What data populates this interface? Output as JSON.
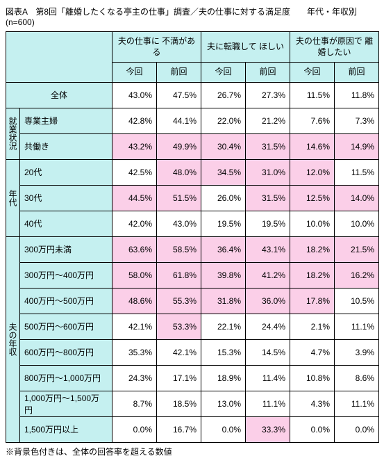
{
  "title": "図表A　第8回「離婚したくなる亭主の仕事」調査／夫の仕事に対する満足度　　年代・年収別　　(n=600)",
  "footnote": "※背景色付きは、全体の回答率を超える数値",
  "colors": {
    "header_bg": "#c5f0f0",
    "highlight_bg": "#fbcfe8",
    "border": "#000000",
    "bg": "#ffffff"
  },
  "columns": {
    "g1": "夫の仕事に\n不満がある",
    "g2": "夫に転職して\nほしい",
    "g3": "夫の仕事が原因で\n離婚したい",
    "sub_now": "今回",
    "sub_prev": "前回"
  },
  "categories": {
    "total": "全体",
    "emp": "就業状況",
    "age": "年代",
    "income": "夫の年収"
  },
  "rows": {
    "total": {
      "label": "全体",
      "v": [
        "43.0%",
        "47.5%",
        "26.7%",
        "27.3%",
        "11.5%",
        "11.8%"
      ],
      "hl": [
        0,
        0,
        0,
        0,
        0,
        0
      ]
    },
    "emp1": {
      "label": "専業主婦",
      "v": [
        "42.8%",
        "44.1%",
        "22.0%",
        "21.2%",
        "7.6%",
        "7.3%"
      ],
      "hl": [
        0,
        0,
        0,
        0,
        0,
        0
      ]
    },
    "emp2": {
      "label": "共働き",
      "v": [
        "43.2%",
        "49.9%",
        "30.4%",
        "31.5%",
        "14.6%",
        "14.9%"
      ],
      "hl": [
        1,
        1,
        1,
        1,
        1,
        1
      ]
    },
    "age1": {
      "label": "20代",
      "v": [
        "42.5%",
        "48.0%",
        "34.5%",
        "31.0%",
        "12.0%",
        "11.5%"
      ],
      "hl": [
        0,
        1,
        1,
        1,
        1,
        0
      ]
    },
    "age2": {
      "label": "30代",
      "v": [
        "44.5%",
        "51.5%",
        "26.0%",
        "31.5%",
        "12.5%",
        "14.0%"
      ],
      "hl": [
        1,
        1,
        0,
        1,
        1,
        1
      ]
    },
    "age3": {
      "label": "40代",
      "v": [
        "42.0%",
        "43.0%",
        "19.5%",
        "19.5%",
        "10.0%",
        "10.0%"
      ],
      "hl": [
        0,
        0,
        0,
        0,
        0,
        0
      ]
    },
    "inc1": {
      "label": "300万円未満",
      "v": [
        "63.6%",
        "58.5%",
        "36.4%",
        "43.1%",
        "18.2%",
        "21.5%"
      ],
      "hl": [
        1,
        1,
        1,
        1,
        1,
        1
      ]
    },
    "inc2": {
      "label": "300万円～400万円",
      "v": [
        "58.0%",
        "61.8%",
        "39.8%",
        "41.2%",
        "18.2%",
        "16.2%"
      ],
      "hl": [
        1,
        1,
        1,
        1,
        1,
        1
      ]
    },
    "inc3": {
      "label": "400万円～500万円",
      "v": [
        "48.6%",
        "55.3%",
        "31.8%",
        "36.0%",
        "17.8%",
        "10.5%"
      ],
      "hl": [
        1,
        1,
        1,
        1,
        1,
        0
      ]
    },
    "inc4": {
      "label": "500万円～600万円",
      "v": [
        "42.1%",
        "53.3%",
        "22.1%",
        "24.4%",
        "2.1%",
        "11.1%"
      ],
      "hl": [
        0,
        1,
        0,
        0,
        0,
        0
      ]
    },
    "inc5": {
      "label": "600万円～800万円",
      "v": [
        "35.3%",
        "42.1%",
        "15.3%",
        "14.5%",
        "4.7%",
        "3.9%"
      ],
      "hl": [
        0,
        0,
        0,
        0,
        0,
        0
      ]
    },
    "inc6": {
      "label": "800万円～1,000万円",
      "v": [
        "24.3%",
        "17.1%",
        "18.9%",
        "11.4%",
        "10.8%",
        "8.6%"
      ],
      "hl": [
        0,
        0,
        0,
        0,
        0,
        0
      ]
    },
    "inc7": {
      "label": "1,000万円～1,500万円",
      "v": [
        "8.7%",
        "18.5%",
        "13.0%",
        "11.1%",
        "4.3%",
        "11.1%"
      ],
      "hl": [
        0,
        0,
        0,
        0,
        0,
        0
      ]
    },
    "inc8": {
      "label": "1,500万円以上",
      "v": [
        "0.0%",
        "16.7%",
        "0.0%",
        "33.3%",
        "0.0%",
        "0.0%"
      ],
      "hl": [
        0,
        0,
        0,
        1,
        0,
        0
      ]
    }
  }
}
